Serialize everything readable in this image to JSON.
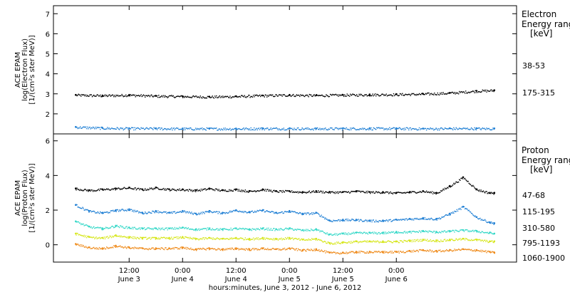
{
  "chart_data": [
    {
      "type": "scatter",
      "panel": "electron",
      "ylabel_lines": [
        "ACE EPAM",
        "log(Electron Flux)",
        "[1/(cm²s ster MeV)]"
      ],
      "ylim": [
        1.0,
        7.4
      ],
      "yticks": [
        2,
        3,
        4,
        5,
        6,
        7
      ],
      "legend": {
        "title_lines": [
          "Electron",
          "Energy ranges",
          "[keV]"
        ],
        "placement": "right"
      },
      "series": [
        {
          "name": "38-53",
          "color": "#000000",
          "x_hours": [
            0,
            6,
            12,
            18,
            24,
            30,
            36,
            42,
            48,
            54,
            60,
            66,
            72,
            78,
            84,
            90,
            94
          ],
          "y": [
            2.95,
            2.92,
            2.95,
            2.9,
            2.88,
            2.86,
            2.88,
            2.92,
            2.95,
            2.93,
            2.95,
            2.97,
            2.98,
            3.0,
            3.05,
            3.15,
            3.18
          ]
        },
        {
          "name": "175-315",
          "color": "#1f7fd4",
          "x_hours": [
            0,
            6,
            12,
            18,
            24,
            30,
            36,
            42,
            48,
            54,
            60,
            66,
            72,
            78,
            84,
            90,
            94
          ],
          "y": [
            1.35,
            1.3,
            1.28,
            1.28,
            1.27,
            1.27,
            1.27,
            1.28,
            1.28,
            1.27,
            1.28,
            1.28,
            1.28,
            1.27,
            1.28,
            1.28,
            1.27
          ]
        }
      ]
    },
    {
      "type": "scatter",
      "panel": "proton",
      "ylabel_lines": [
        "ACE EPAM",
        "log(Proton Flux)",
        "[1/(cm²s ster MeV)]"
      ],
      "ylim": [
        -1.0,
        6.4
      ],
      "yticks": [
        0,
        2,
        4,
        6
      ],
      "legend": {
        "title_lines": [
          "Proton",
          "Energy ranges",
          "[keV]"
        ],
        "placement": "right"
      },
      "series": [
        {
          "name": "47-68",
          "color": "#000000",
          "x_hours": [
            0,
            3,
            6,
            9,
            12,
            15,
            18,
            21,
            24,
            27,
            30,
            33,
            36,
            39,
            42,
            45,
            48,
            51,
            54,
            57,
            60,
            63,
            66,
            69,
            72,
            75,
            78,
            81,
            84,
            87,
            90,
            93,
            94
          ],
          "y": [
            3.25,
            3.15,
            3.2,
            3.25,
            3.3,
            3.2,
            3.3,
            3.2,
            3.2,
            3.15,
            3.25,
            3.15,
            3.2,
            3.1,
            3.2,
            3.1,
            3.1,
            3.05,
            3.1,
            3.05,
            3.05,
            3.1,
            3.05,
            3.05,
            3.0,
            3.05,
            3.1,
            3.0,
            3.4,
            3.9,
            3.2,
            3.0,
            3.0
          ]
        },
        {
          "name": "115-195",
          "color": "#1f7fd4",
          "x_hours": [
            0,
            3,
            6,
            9,
            12,
            15,
            18,
            21,
            24,
            27,
            30,
            33,
            36,
            39,
            42,
            45,
            48,
            51,
            54,
            57,
            60,
            63,
            66,
            69,
            72,
            75,
            78,
            81,
            84,
            87,
            90,
            93,
            94
          ],
          "y": [
            2.3,
            1.95,
            1.85,
            2.0,
            2.05,
            1.85,
            1.95,
            1.85,
            1.95,
            1.8,
            1.95,
            1.85,
            2.0,
            1.9,
            2.0,
            1.85,
            1.95,
            1.8,
            1.85,
            1.4,
            1.45,
            1.45,
            1.4,
            1.4,
            1.45,
            1.5,
            1.55,
            1.5,
            1.8,
            2.2,
            1.6,
            1.3,
            1.25
          ]
        },
        {
          "name": "310-580",
          "color": "#35d8c8",
          "x_hours": [
            0,
            3,
            6,
            9,
            12,
            15,
            18,
            21,
            24,
            27,
            30,
            33,
            36,
            39,
            42,
            45,
            48,
            51,
            54,
            57,
            60,
            63,
            66,
            69,
            72,
            75,
            78,
            81,
            84,
            87,
            90,
            93,
            94
          ],
          "y": [
            1.35,
            1.05,
            0.95,
            1.1,
            1.0,
            0.95,
            0.95,
            0.95,
            1.0,
            0.9,
            0.95,
            0.9,
            0.95,
            0.9,
            0.95,
            0.9,
            0.95,
            0.85,
            0.9,
            0.6,
            0.65,
            0.7,
            0.7,
            0.7,
            0.75,
            0.75,
            0.8,
            0.75,
            0.8,
            0.85,
            0.8,
            0.7,
            0.65
          ]
        },
        {
          "name": "795-1193",
          "color": "#d6e61a",
          "x_hours": [
            0,
            3,
            6,
            9,
            12,
            15,
            18,
            21,
            24,
            27,
            30,
            33,
            36,
            39,
            42,
            45,
            48,
            51,
            54,
            57,
            60,
            63,
            66,
            69,
            72,
            75,
            78,
            81,
            84,
            87,
            90,
            93,
            94
          ],
          "y": [
            0.65,
            0.45,
            0.4,
            0.55,
            0.45,
            0.4,
            0.4,
            0.4,
            0.45,
            0.35,
            0.4,
            0.35,
            0.4,
            0.35,
            0.4,
            0.35,
            0.4,
            0.3,
            0.35,
            0.1,
            0.15,
            0.2,
            0.2,
            0.2,
            0.2,
            0.25,
            0.3,
            0.25,
            0.3,
            0.35,
            0.3,
            0.2,
            0.2
          ]
        },
        {
          "name": "1060-1900",
          "color": "#ef8a1a",
          "x_hours": [
            0,
            3,
            6,
            9,
            12,
            15,
            18,
            21,
            24,
            27,
            30,
            33,
            36,
            39,
            42,
            45,
            48,
            51,
            54,
            57,
            60,
            63,
            66,
            69,
            72,
            75,
            78,
            81,
            84,
            87,
            90,
            93,
            94
          ],
          "y": [
            0.05,
            -0.15,
            -0.2,
            -0.05,
            -0.15,
            -0.2,
            -0.2,
            -0.2,
            -0.15,
            -0.25,
            -0.2,
            -0.25,
            -0.2,
            -0.25,
            -0.2,
            -0.25,
            -0.2,
            -0.3,
            -0.25,
            -0.45,
            -0.45,
            -0.4,
            -0.4,
            -0.4,
            -0.4,
            -0.35,
            -0.3,
            -0.35,
            -0.3,
            -0.25,
            -0.3,
            -0.4,
            -0.45
          ]
        }
      ]
    }
  ],
  "x_axis": {
    "xlim_hours": [
      -5,
      99
    ],
    "tick_hours": [
      12,
      24,
      36,
      48,
      60,
      72
    ],
    "tick_times": [
      "12:00",
      "0:00",
      "12:00",
      "0:00",
      "12:00",
      "0:00"
    ],
    "tick_days": [
      "June 3",
      "June 4",
      "June 4",
      "June 5",
      "June 5",
      "June 6"
    ],
    "xlabel": "hours:minutes, June  3, 2012 - June  6, 2012"
  }
}
